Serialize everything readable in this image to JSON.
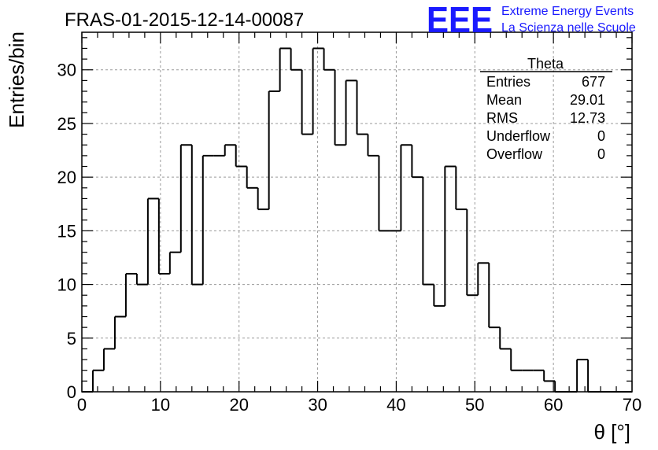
{
  "chart_data": {
    "type": "bar",
    "title": "FRAS-01-2015-12-14-00087",
    "xlabel": "θ [°]",
    "ylabel": "Entries/bin",
    "xlim": [
      0,
      70
    ],
    "ylim": [
      0,
      33.5
    ],
    "grid": true,
    "x_ticks": [
      "0",
      "10",
      "20",
      "30",
      "40",
      "50",
      "60",
      "70"
    ],
    "y_ticks": [
      "0",
      "5",
      "10",
      "15",
      "20",
      "25",
      "30"
    ],
    "x_tick_values": [
      0,
      10,
      20,
      30,
      40,
      50,
      60,
      70
    ],
    "y_tick_values": [
      0,
      5,
      10,
      15,
      20,
      25,
      30
    ],
    "bin_width": 1.4,
    "bin_start": 0,
    "values": [
      0,
      2,
      4,
      7,
      11,
      10,
      18,
      11,
      13,
      23,
      10,
      22,
      22,
      23,
      21,
      19,
      17,
      28,
      32,
      30,
      24,
      32,
      30,
      23,
      29,
      24,
      22,
      15,
      15,
      23,
      20,
      10,
      8,
      21,
      17,
      9,
      12,
      6,
      4,
      2,
      2,
      2,
      1,
      0,
      0,
      3,
      0,
      0,
      0,
      0
    ],
    "stats": {
      "name": "Theta",
      "rows": [
        {
          "label": "Entries",
          "value": "677"
        },
        {
          "label": "Mean",
          "value": "29.01"
        },
        {
          "label": "RMS",
          "value": "12.73"
        },
        {
          "label": "Underflow",
          "value": "0"
        },
        {
          "label": "Overflow",
          "value": "0"
        }
      ]
    }
  },
  "brand": {
    "logo": "EEE",
    "line1": "Extreme Energy Events",
    "line2": "La Scienza nelle Scuole",
    "color": "#1a1aff"
  }
}
